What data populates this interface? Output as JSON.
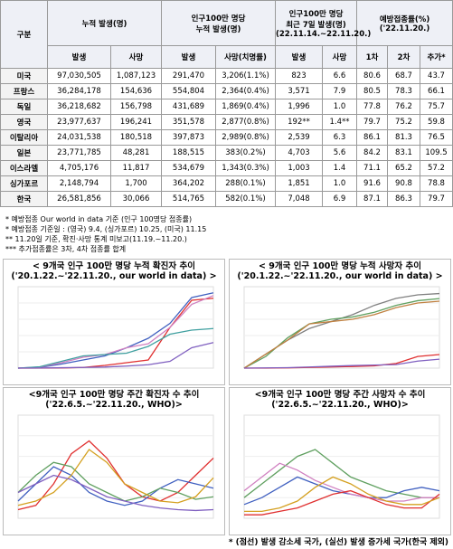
{
  "table": {
    "header_top": [
      "구분",
      "누적 발생(명)",
      "인구100만 명당\n누적 발생(명)",
      "인구100만 명당\n최근 7일 발생(명)\n(22.11.14.~22.11.20.)",
      "예방접종률(%)\n('22.11.20.)"
    ],
    "header_sub": [
      "발생",
      "사망",
      "발생",
      "사망(치명률)",
      "발생",
      "사망",
      "1차",
      "2차",
      "추가*"
    ],
    "rows": [
      [
        "미국",
        "97,030,505",
        "1,087,123",
        "291,470",
        "3,206(1.1%)",
        "823",
        "6.6",
        "80.6",
        "68.7",
        "43.7"
      ],
      [
        "프랑스",
        "36,284,178",
        "154,636",
        "554,804",
        "2,364(0.4%)",
        "3,571",
        "7.9",
        "80.5",
        "78.3",
        "66.1"
      ],
      [
        "독일",
        "36,218,682",
        "156,798",
        "431,689",
        "1,869(0.4%)",
        "1,996",
        "1.0",
        "77.8",
        "76.2",
        "75.7"
      ],
      [
        "영국",
        "23,977,637",
        "196,241",
        "351,578",
        "2,877(0.8%)",
        "192**",
        "1.4**",
        "79.7",
        "75.2",
        "59.8"
      ],
      [
        "이탈리아",
        "24,031,538",
        "180,518",
        "397,873",
        "2,989(0.8%)",
        "2,539",
        "6.3",
        "86.1",
        "81.3",
        "76.5"
      ],
      [
        "일본",
        "23,771,785",
        "48,281",
        "188,515",
        "383(0.2%)",
        "4,703",
        "5.6",
        "84.2",
        "83.1",
        "109.5"
      ],
      [
        "이스라엘",
        "4,705,176",
        "11,817",
        "534,679",
        "1,343(0.3%)",
        "1,003",
        "1.4",
        "71.1",
        "65.2",
        "57.2"
      ],
      [
        "싱가포르",
        "2,148,794",
        "1,700",
        "364,202",
        "288(0.1%)",
        "1,851",
        "1.0",
        "91.6",
        "90.8",
        "78.8"
      ],
      [
        "한국",
        "26,581,856",
        "30,066",
        "514,765",
        "582(0.1%)",
        "7,048",
        "6.9",
        "87.1",
        "86.3",
        "79.7"
      ]
    ]
  },
  "notes": [
    "* 예방접종 Our world in data 기준 (인구 100명당 접종률)",
    "* 예방접종 기준일 : (영국) 9.4, (싱가포르) 10.25, (미국) 11.15",
    "** 11.20일 기준, 확진·사망 통계 미보고(11.19.~11.20.)",
    "*** 추가접종률은 3차, 4차 접종률 합계"
  ],
  "charts": [
    {
      "type": "line",
      "title": [
        "< 9개국 인구 100만 명당 누적 확진자 추이",
        "('20.1.22.~'22.11.20., our world in data) >"
      ],
      "ylim": [
        0,
        600000
      ],
      "series": [
        {
          "color": "#e03030",
          "values": [
            0,
            0,
            1000,
            5000,
            20000,
            40000,
            60000,
            300000,
            500000,
            514765
          ]
        },
        {
          "color": "#4060c0",
          "values": [
            0,
            5000,
            30000,
            60000,
            90000,
            150000,
            220000,
            330000,
            520000,
            554804
          ]
        },
        {
          "color": "#d080c0",
          "values": [
            0,
            8000,
            40000,
            80000,
            100000,
            150000,
            180000,
            300000,
            470000,
            534679
          ]
        },
        {
          "color": "#40a0a0",
          "values": [
            0,
            10000,
            50000,
            90000,
            100000,
            110000,
            160000,
            250000,
            280000,
            291470
          ]
        },
        {
          "color": "#8060c0",
          "values": [
            0,
            1000,
            3000,
            5000,
            8000,
            15000,
            25000,
            50000,
            150000,
            188515
          ]
        }
      ]
    },
    {
      "type": "line",
      "title": [
        "< 9개국 인구 100만 명당 누적 사망자 추이",
        "('20.1.22.~'22.11.20., our world in data) >"
      ],
      "ylim": [
        0,
        3500
      ],
      "series": [
        {
          "color": "#808080",
          "values": [
            0,
            600,
            1200,
            1700,
            2000,
            2300,
            2700,
            3000,
            3150,
            3206
          ]
        },
        {
          "color": "#60a060",
          "values": [
            0,
            500,
            1300,
            1900,
            2100,
            2200,
            2400,
            2700,
            2900,
            2989
          ]
        },
        {
          "color": "#c08040",
          "values": [
            0,
            600,
            1200,
            1900,
            2000,
            2100,
            2300,
            2600,
            2800,
            2877
          ]
        },
        {
          "color": "#e03030",
          "values": [
            0,
            0,
            10,
            30,
            50,
            70,
            100,
            200,
            500,
            582
          ]
        },
        {
          "color": "#8060c0",
          "values": [
            0,
            10,
            20,
            50,
            80,
            110,
            130,
            150,
            300,
            383
          ]
        }
      ]
    },
    {
      "type": "line",
      "title": [
        "<9개국 인구 100만 명당 주간 확진자 수 추이",
        "('22.6.5.~'22.11.20., WHO)>"
      ],
      "ylim": [
        0,
        12000
      ],
      "series": [
        {
          "color": "#e03030",
          "values": [
            1000,
            1500,
            4000,
            7500,
            9000,
            7000,
            4000,
            2500,
            2000,
            3000,
            5000,
            7000
          ]
        },
        {
          "color": "#4060c0",
          "values": [
            2000,
            4000,
            6000,
            5000,
            3000,
            2000,
            1500,
            2000,
            3500,
            4500,
            4000,
            3500
          ]
        },
        {
          "color": "#60a060",
          "values": [
            3000,
            5000,
            6500,
            6000,
            4000,
            3000,
            2000,
            2500,
            3500,
            3000,
            2200,
            2500
          ]
        },
        {
          "color": "#d4a020",
          "values": [
            1500,
            2000,
            3000,
            5000,
            8000,
            6500,
            4000,
            3000,
            2000,
            1800,
            2500,
            4700
          ]
        },
        {
          "color": "#8060c0",
          "values": [
            3000,
            4000,
            5000,
            4500,
            3500,
            2500,
            2000,
            1500,
            1200,
            1000,
            900,
            1000
          ]
        }
      ]
    },
    {
      "type": "line",
      "title": [
        "<9개국 인구 100만 명당 주간 사망자 수 추이",
        "('22.6.5.~'22.11.20., WHO)>"
      ],
      "ylim": [
        0,
        30
      ],
      "series": [
        {
          "color": "#60a060",
          "values": [
            6,
            10,
            14,
            18,
            20,
            16,
            12,
            10,
            8,
            7,
            6,
            6
          ]
        },
        {
          "color": "#4060c0",
          "values": [
            4,
            6,
            9,
            12,
            10,
            8,
            7,
            6,
            6,
            8,
            9,
            8
          ]
        },
        {
          "color": "#d080c0",
          "values": [
            8,
            12,
            16,
            14,
            11,
            9,
            7,
            6,
            5,
            5,
            6,
            6
          ]
        },
        {
          "color": "#e03030",
          "values": [
            1,
            1,
            2,
            3,
            5,
            7,
            8,
            6,
            4,
            3,
            3,
            7
          ]
        },
        {
          "color": "#d4a020",
          "values": [
            2,
            2,
            3,
            5,
            9,
            12,
            10,
            7,
            5,
            4,
            4,
            6
          ]
        }
      ]
    }
  ],
  "footer": "* (점선) 발생 감소세 국가, (실선) 발생 증가세 국가(한국 제외)"
}
